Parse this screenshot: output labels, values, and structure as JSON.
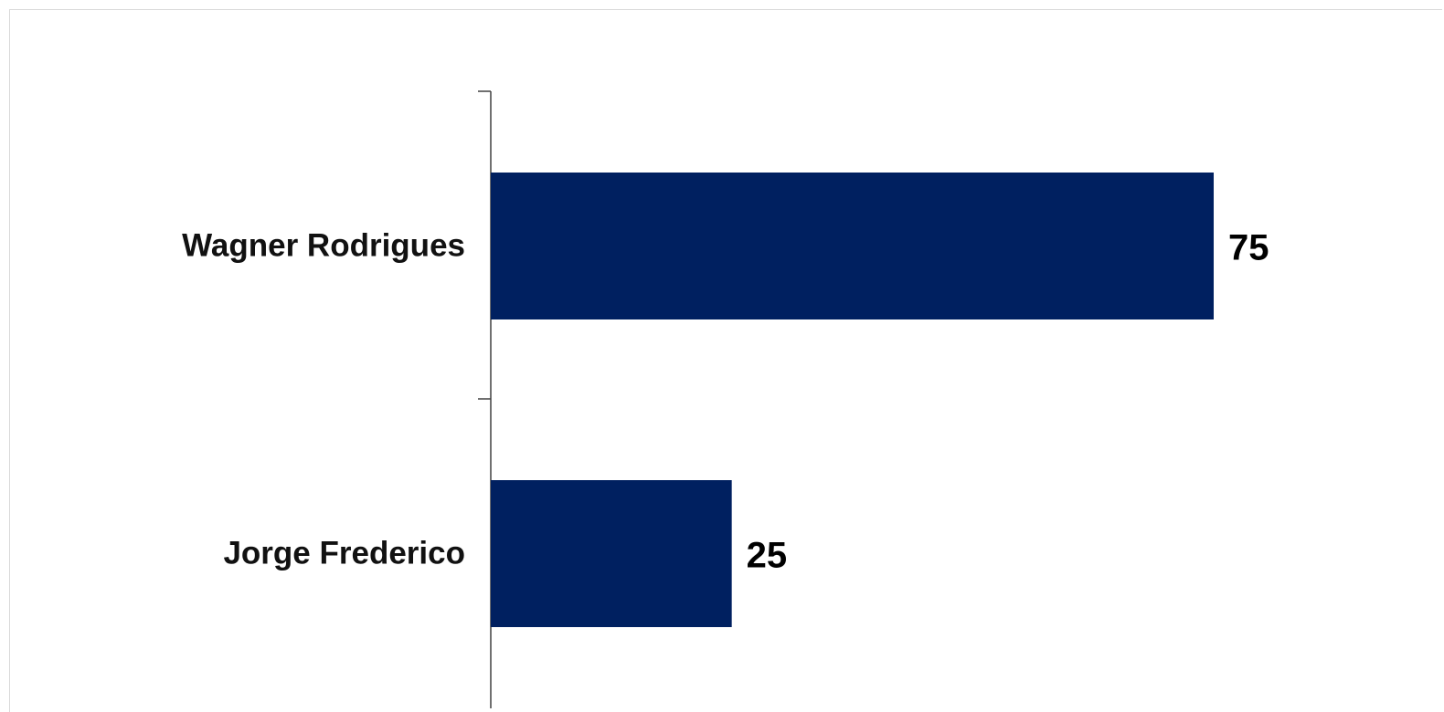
{
  "chart_data": {
    "type": "bar",
    "orientation": "horizontal",
    "categories": [
      "Wagner Rodrigues",
      "Jorge Frederico"
    ],
    "values": [
      75,
      25
    ],
    "data_labels": [
      "75",
      "25"
    ],
    "title": "",
    "xlabel": "",
    "ylabel": "",
    "xlim": [
      0,
      75
    ],
    "bar_color": "#002060",
    "grid": false,
    "legend": "none"
  }
}
